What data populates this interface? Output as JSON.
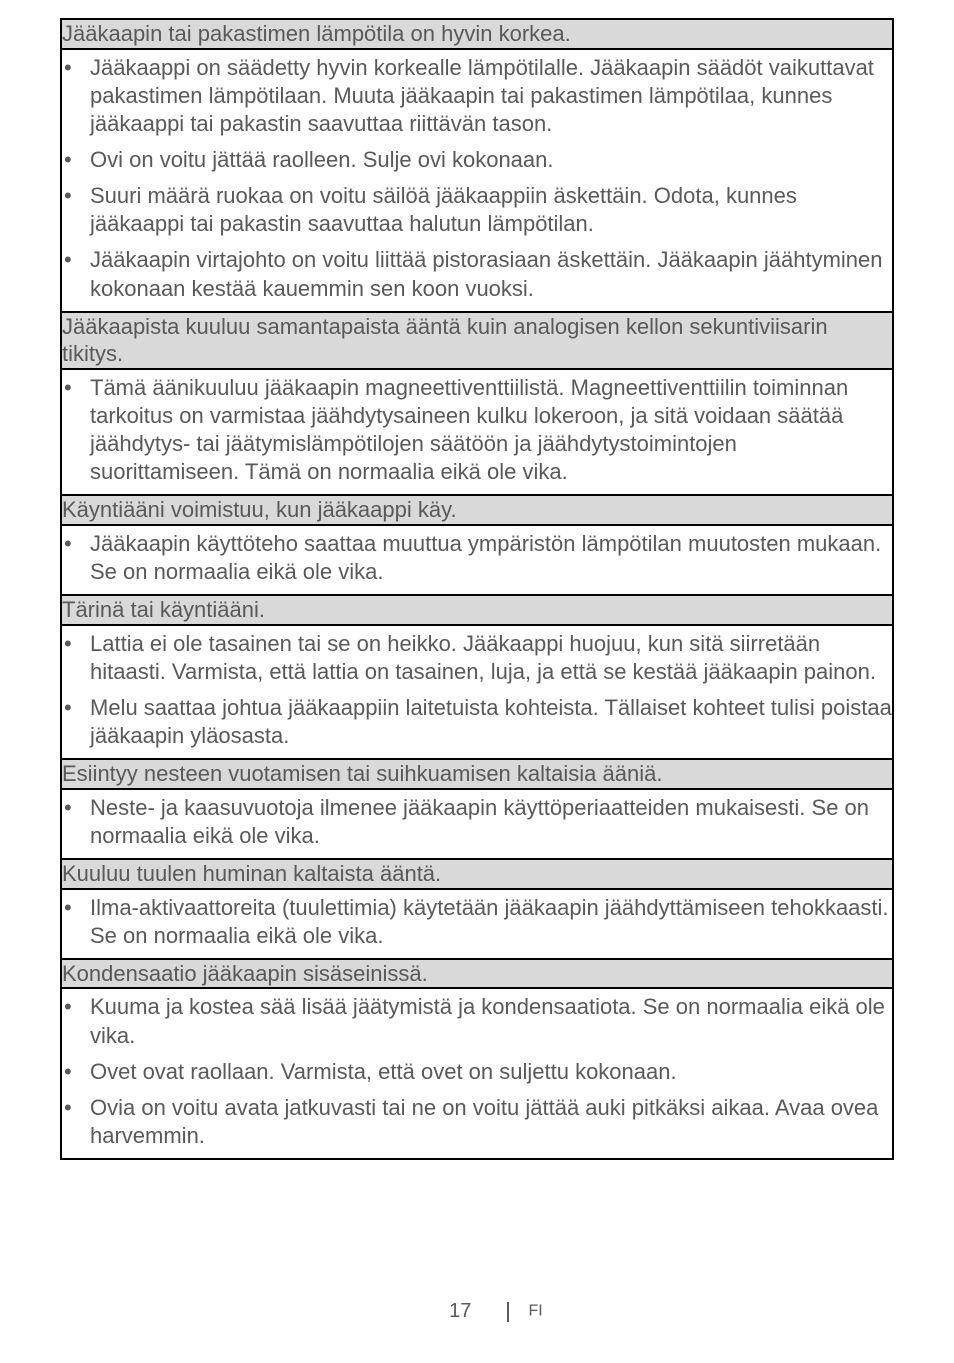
{
  "sections": [
    {
      "header": "Jääkaapin tai pakastimen lämpötila on hyvin korkea.",
      "items": [
        "Jääkaappi on säädetty hyvin korkealle lämpötilalle. Jääkaapin säädöt vaikuttavat pakastimen lämpötilaan. Muuta jääkaapin tai pakastimen lämpötilaa, kunnes jääkaappi tai pakastin saavuttaa riittävän tason.",
        "Ovi on voitu jättää raolleen. Sulje ovi kokonaan.",
        "Suuri määrä ruokaa on voitu säilöä jääkaappiin äskettäin. Odota, kunnes jääkaappi tai pakastin saavuttaa halutun lämpötilan.",
        "Jääkaapin virtajohto on voitu liittää pistorasiaan äskettäin.  Jääkaapin jäähtyminen kokonaan kestää kauemmin sen koon vuoksi."
      ]
    },
    {
      "header": "Jääkaapista kuuluu samantapaista ääntä kuin analogisen kellon sekuntiviisarin tikitys.",
      "items": [
        "Tämä äänikuuluu jääkaapin magneettiventtiilistä. Magneettiventtiilin toiminnan tarkoitus on varmistaa jäähdytysaineen kulku lokeroon, ja sitä voidaan säätää jäähdytys- tai jäätymislämpötilojen säätöön ja jäähdytystoimintojen suorittamiseen. Tämä on normaalia eikä ole vika."
      ]
    },
    {
      "header": "Käyntiääni voimistuu, kun jääkaappi käy.",
      "items": [
        "Jääkaapin käyttöteho saattaa muuttua ympäristön lämpötilan muutosten mukaan. Se on normaalia eikä ole vika."
      ]
    },
    {
      "header": "Tärinä tai käyntiääni.",
      "items": [
        "Lattia ei ole tasainen tai se on heikko. Jääkaappi huojuu, kun sitä siirretään hitaasti. Varmista, että lattia on tasainen, luja, ja että se kestää jääkaapin painon.",
        "Melu saattaa johtua jääkaappiin laitetuista kohteista. Tällaiset kohteet tulisi poistaa jääkaapin yläosasta."
      ]
    },
    {
      "header": "Esiintyy nesteen vuotamisen tai suihkuamisen kaltaisia ääniä.",
      "items": [
        "Neste- ja kaasuvuotoja ilmenee jääkaapin käyttöperiaatteiden mukaisesti. Se on normaalia eikä ole vika."
      ]
    },
    {
      "header": "Kuuluu tuulen huminan kaltaista ääntä.",
      "items": [
        "Ilma-aktivaattoreita (tuulettimia) käytetään jääkaapin jäähdyttämiseen tehokkaasti. Se on normaalia eikä ole vika."
      ]
    },
    {
      "header": "Kondensaatio jääkaapin sisäseinissä.",
      "items": [
        "Kuuma ja kostea sää lisää jäätymistä ja kondensaatiota. Se on normaalia eikä ole vika.",
        "Ovet ovat raollaan. Varmista, että ovet on suljettu kokonaan.",
        "Ovia on voitu avata jatkuvasti tai ne on voitu jättää auki pitkäksi aikaa. Avaa ovea harvemmin."
      ]
    }
  ],
  "footer": {
    "page": "17",
    "lang": "FI"
  },
  "colors": {
    "text": "#595959",
    "header_bg": "#d9d9d9",
    "border": "#000000",
    "page_bg": "#ffffff"
  },
  "typography": {
    "body_fontsize": 22,
    "footer_page_fontsize": 20,
    "footer_lang_fontsize": 16
  }
}
